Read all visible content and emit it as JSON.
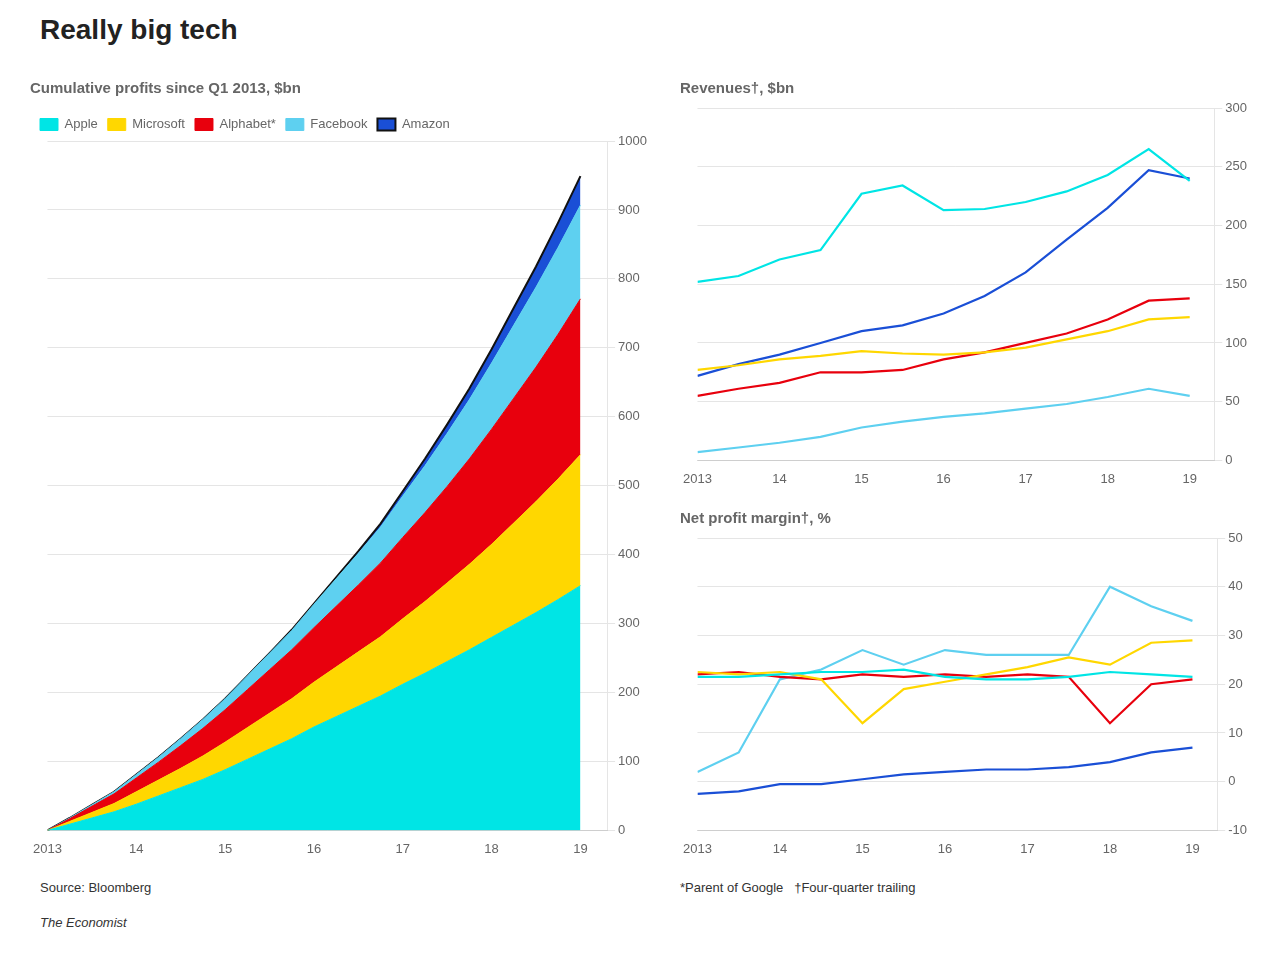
{
  "title": "Really big tech",
  "annotations": [
    "Source: Bloomberg",
    "*Parent of Google   †Four-quarter trailing",
    "The Economist"
  ],
  "chart_data": [
    {
      "type": "area",
      "title": "Cumulative profits since Q1 2013, $bn",
      "stacked": true,
      "legend": "top",
      "grid": true,
      "x": [
        2013.0,
        2013.25,
        2013.5,
        2013.75,
        2014.0,
        2014.25,
        2014.5,
        2014.75,
        2015.0,
        2015.25,
        2015.5,
        2015.75,
        2016.0,
        2016.25,
        2016.5,
        2016.75,
        2017.0,
        2017.25,
        2017.5,
        2017.75,
        2018.0,
        2018.25,
        2018.5,
        2018.75,
        2019.0
      ],
      "xlim": [
        2013,
        2019.3
      ],
      "xticks": [
        2013,
        {
          "value": 2014,
          "label": "14"
        },
        {
          "value": 2015,
          "label": "15"
        },
        {
          "value": 2016,
          "label": "16"
        },
        {
          "value": 2017,
          "label": "17"
        },
        {
          "value": 2018,
          "label": "18"
        },
        {
          "value": 2019,
          "label": "19"
        }
      ],
      "ylim": [
        0,
        1000
      ],
      "yticks": [
        0,
        100,
        200,
        300,
        400,
        500,
        600,
        700,
        800,
        900,
        1000
      ],
      "series": [
        {
          "name": "Apple",
          "color": "#00e5e5",
          "values": [
            0,
            9,
            18,
            27,
            38,
            50,
            62,
            74,
            88,
            103,
            118,
            133,
            150,
            165,
            180,
            195,
            212,
            228,
            245,
            262,
            280,
            298,
            316,
            335,
            355
          ]
        },
        {
          "name": "Microsoft",
          "color": "#ffd700",
          "values": [
            0,
            4,
            8,
            12,
            18,
            23,
            28,
            34,
            40,
            46,
            52,
            58,
            65,
            72,
            79,
            86,
            95,
            104,
            114,
            124,
            135,
            148,
            161,
            175,
            190
          ]
        },
        {
          "name": "Alphabet*",
          "color": "#e8000d",
          "values": [
            0,
            4,
            9,
            14,
            20,
            26,
            33,
            40,
            47,
            55,
            63,
            71,
            79,
            88,
            97,
            107,
            118,
            129,
            140,
            153,
            167,
            181,
            195,
            210,
            226
          ]
        },
        {
          "name": "Facebook",
          "color": "#5ed0f0",
          "values": [
            0,
            1,
            2,
            3,
            5,
            7,
            10,
            13,
            16,
            20,
            24,
            28,
            34,
            40,
            46,
            52,
            60,
            68,
            77,
            86,
            96,
            106,
            116,
            126,
            136
          ]
        },
        {
          "name": "Amazon",
          "color": "#1a4fd6",
          "values": [
            0,
            0,
            0,
            0,
            0,
            0,
            0,
            0,
            0,
            0,
            0,
            1,
            1,
            2,
            3,
            5,
            7,
            10,
            13,
            16,
            20,
            25,
            30,
            36,
            42
          ]
        }
      ]
    },
    {
      "type": "line",
      "title": "Revenues†, $bn",
      "grid": true,
      "x": [
        2013.0,
        2013.5,
        2014.0,
        2014.5,
        2015.0,
        2015.5,
        2016.0,
        2016.5,
        2017.0,
        2017.5,
        2018.0,
        2018.5,
        2019.0
      ],
      "xlim": [
        2013,
        2019.3
      ],
      "xticks": [
        2013,
        {
          "value": 2014,
          "label": "14"
        },
        {
          "value": 2015,
          "label": "15"
        },
        {
          "value": 2016,
          "label": "16"
        },
        {
          "value": 2017,
          "label": "17"
        },
        {
          "value": 2018,
          "label": "18"
        },
        {
          "value": 2019,
          "label": "19"
        }
      ],
      "ylim": [
        0,
        300
      ],
      "yticks": [
        0,
        50,
        100,
        150,
        200,
        250,
        300
      ],
      "series": [
        {
          "name": "Apple",
          "color": "#00e5e5",
          "values": [
            152,
            157,
            171,
            179,
            227,
            234,
            213,
            214,
            220,
            229,
            243,
            265,
            238
          ]
        },
        {
          "name": "Microsoft",
          "color": "#ffd700",
          "values": [
            77,
            81,
            86,
            89,
            93,
            91,
            90,
            92,
            96,
            103,
            110,
            120,
            122
          ]
        },
        {
          "name": "Alphabet*",
          "color": "#e8000d",
          "values": [
            55,
            61,
            66,
            75,
            75,
            77,
            86,
            92,
            100,
            108,
            120,
            136,
            138
          ]
        },
        {
          "name": "Facebook",
          "color": "#5ed0f0",
          "values": [
            7,
            11,
            15,
            20,
            28,
            33,
            37,
            40,
            44,
            48,
            54,
            61,
            55
          ]
        },
        {
          "name": "Amazon",
          "color": "#1a4fd6",
          "values": [
            72,
            82,
            90,
            100,
            110,
            115,
            125,
            140,
            160,
            188,
            215,
            247,
            240
          ]
        }
      ]
    },
    {
      "type": "line",
      "title": "Net profit margin†, %",
      "grid": true,
      "x": [
        2013.0,
        2013.5,
        2014.0,
        2014.5,
        2015.0,
        2015.5,
        2016.0,
        2016.5,
        2017.0,
        2017.5,
        2018.0,
        2018.5,
        2019.0
      ],
      "xlim": [
        2013,
        2019.3
      ],
      "xticks": [
        2013,
        {
          "value": 2014,
          "label": "14"
        },
        {
          "value": 2015,
          "label": "15"
        },
        {
          "value": 2016,
          "label": "16"
        },
        {
          "value": 2017,
          "label": "17"
        },
        {
          "value": 2018,
          "label": "18"
        },
        {
          "value": 2019,
          "label": "19"
        }
      ],
      "ylim": [
        -10,
        50
      ],
      "yticks": [
        -10,
        0,
        10,
        20,
        30,
        40,
        50
      ],
      "series": [
        {
          "name": "Apple",
          "color": "#00e5e5",
          "values": [
            21.5,
            21.5,
            22.0,
            22.5,
            22.5,
            23.0,
            21.5,
            21.0,
            21.0,
            21.5,
            22.5,
            22.0,
            21.5
          ]
        },
        {
          "name": "Microsoft",
          "color": "#ffd700",
          "values": [
            22.5,
            22.0,
            22.5,
            21.0,
            12.0,
            19.0,
            20.5,
            22.0,
            23.5,
            25.5,
            24.0,
            28.5,
            29.0
          ]
        },
        {
          "name": "Alphabet*",
          "color": "#e8000d",
          "values": [
            22.0,
            22.5,
            21.5,
            21.0,
            22.0,
            21.5,
            22.0,
            21.5,
            22.0,
            21.5,
            12.0,
            20.0,
            21.0
          ]
        },
        {
          "name": "Facebook",
          "color": "#5ed0f0",
          "values": [
            2.0,
            6.0,
            21.0,
            23.0,
            27.0,
            24.0,
            27.0,
            26.0,
            26.0,
            26.0,
            40.0,
            36.0,
            33.0
          ]
        },
        {
          "name": "Amazon",
          "color": "#1a4fd6",
          "values": [
            -2.5,
            -2.0,
            -0.5,
            -0.5,
            0.5,
            1.5,
            2.0,
            2.5,
            2.5,
            3.0,
            4.0,
            6.0,
            7.0
          ]
        }
      ]
    }
  ]
}
